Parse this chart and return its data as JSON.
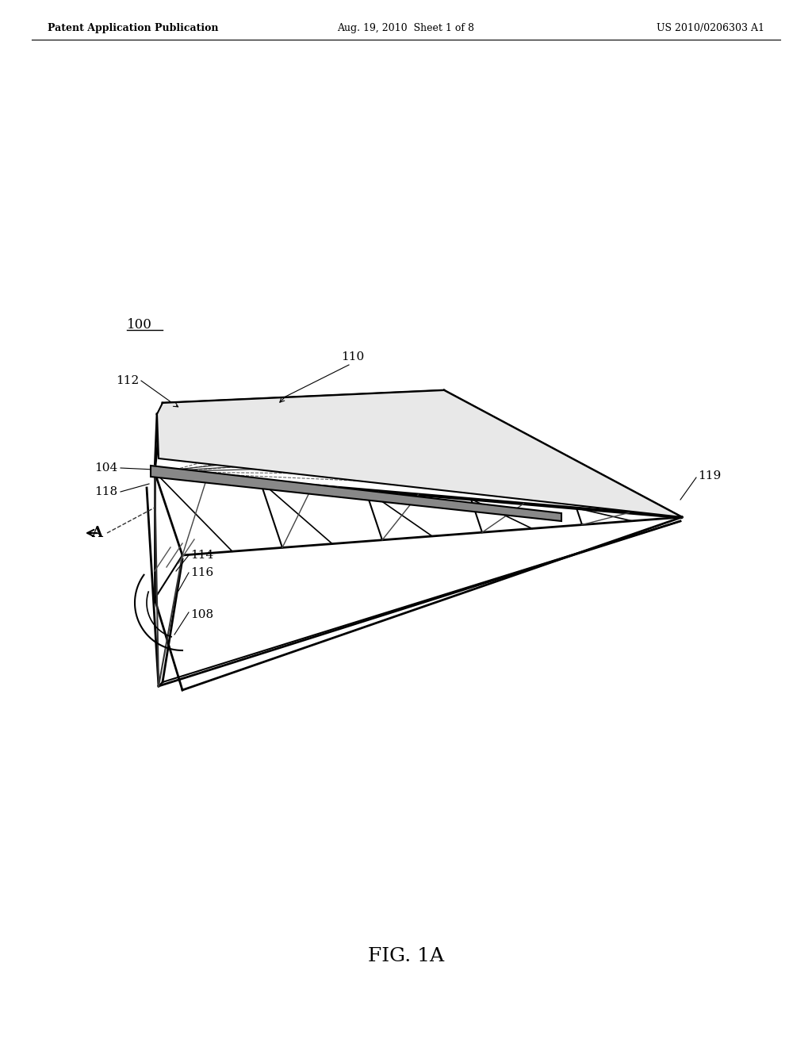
{
  "bg_color": "#ffffff",
  "text_color": "#000000",
  "line_color": "#000000",
  "header_left": "Patent Application Publication",
  "header_mid": "Aug. 19, 2010  Sheet 1 of 8",
  "header_right": "US 2010/0206303 A1",
  "figure_label": "FIG. 1A",
  "label_100": "100",
  "label_110": "110",
  "label_112": "112",
  "label_104": "104",
  "label_118": "118",
  "label_114": "114",
  "label_116": "116",
  "label_108": "108",
  "label_119": "119",
  "label_A": "A"
}
